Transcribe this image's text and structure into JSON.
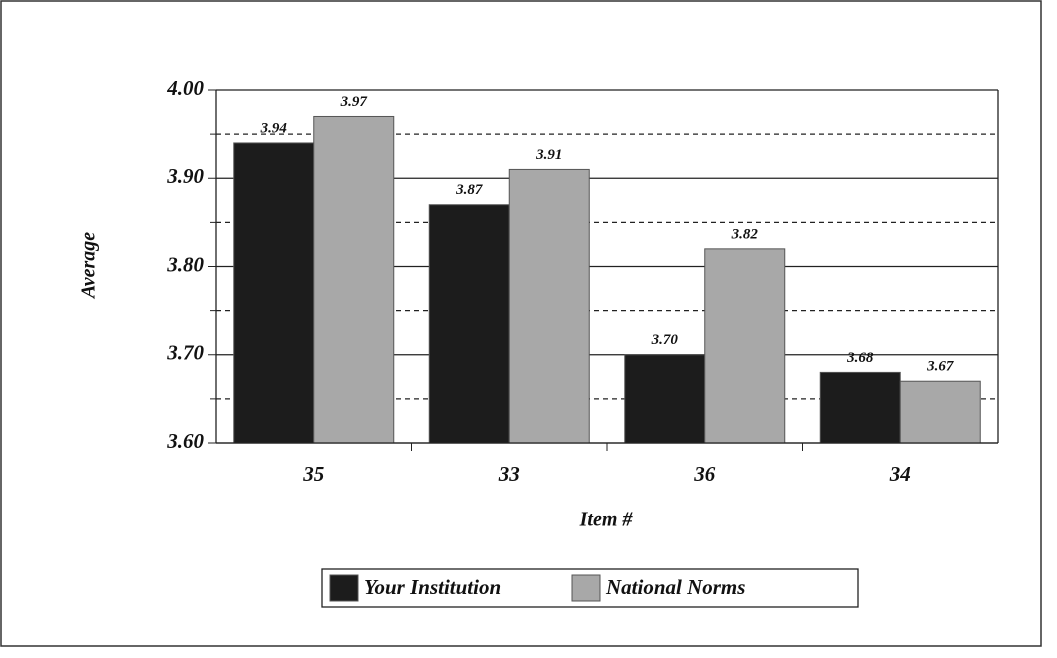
{
  "chart_data": {
    "type": "bar",
    "x_label": "Item #",
    "y_label": "Average",
    "categories": [
      "35",
      "33",
      "36",
      "34"
    ],
    "series": [
      {
        "name": "Your Institution",
        "color": "#1c1c1c",
        "values": [
          3.94,
          3.87,
          3.7,
          3.68
        ],
        "value_labels": [
          "3.94",
          "3.87",
          "3.70",
          "3.68"
        ]
      },
      {
        "name": "National Norms",
        "color": "#a8a8a8",
        "values": [
          3.97,
          3.91,
          3.82,
          3.67
        ],
        "value_labels": [
          "3.97",
          "3.91",
          "3.82",
          "3.67"
        ]
      }
    ],
    "ylim": [
      3.6,
      4.0
    ],
    "yticks": [
      {
        "value": 3.6,
        "label": "3.60"
      },
      {
        "value": 3.7,
        "label": "3.70"
      },
      {
        "value": 3.8,
        "label": "3.80"
      },
      {
        "value": 3.9,
        "label": "3.90"
      },
      {
        "value": 4.0,
        "label": "4.00"
      }
    ],
    "minor_yticks": [
      3.65,
      3.75,
      3.85,
      3.95
    ],
    "grid": true,
    "legend": "bottom"
  }
}
